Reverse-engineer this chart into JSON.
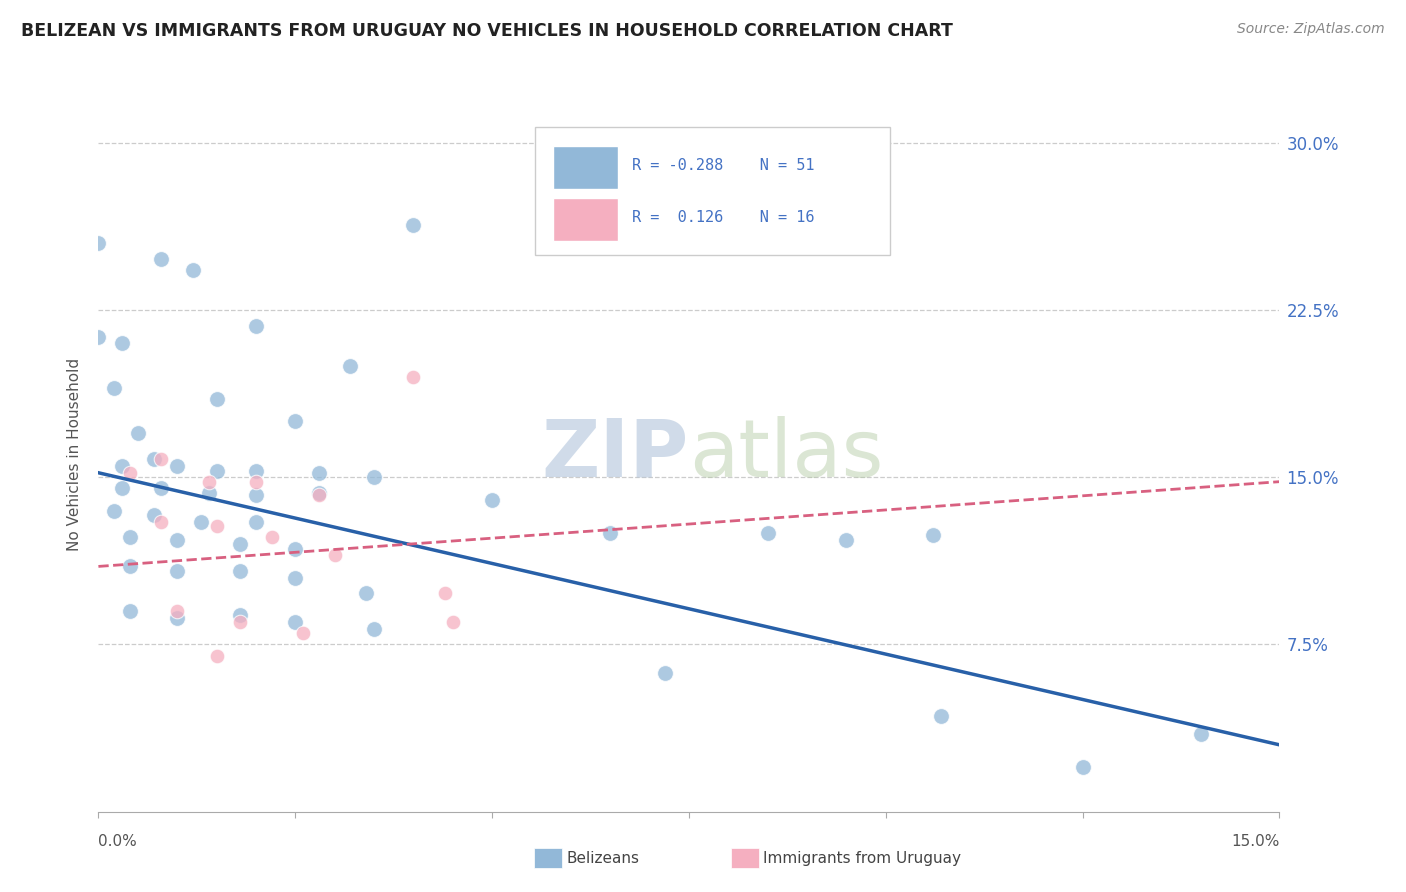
{
  "title": "BELIZEAN VS IMMIGRANTS FROM URUGUAY NO VEHICLES IN HOUSEHOLD CORRELATION CHART",
  "source": "Source: ZipAtlas.com",
  "ylabel": "No Vehicles in Household",
  "ytick_labels": [
    "7.5%",
    "15.0%",
    "22.5%",
    "30.0%"
  ],
  "ytick_values": [
    0.075,
    0.15,
    0.225,
    0.3
  ],
  "xmin": 0.0,
  "xmax": 0.15,
  "ymin": 0.0,
  "ymax": 0.32,
  "watermark_zip": "ZIP",
  "watermark_atlas": "atlas",
  "blue_color": "#92b8d8",
  "pink_color": "#f5afc0",
  "blue_line_color": "#2860a8",
  "pink_line_color": "#d86080",
  "scatter_blue": [
    [
      0.0,
      0.255
    ],
    [
      0.008,
      0.248
    ],
    [
      0.0,
      0.213
    ],
    [
      0.012,
      0.243
    ],
    [
      0.003,
      0.21
    ],
    [
      0.02,
      0.218
    ],
    [
      0.032,
      0.2
    ],
    [
      0.04,
      0.263
    ],
    [
      0.002,
      0.19
    ],
    [
      0.005,
      0.17
    ],
    [
      0.015,
      0.185
    ],
    [
      0.025,
      0.175
    ],
    [
      0.003,
      0.155
    ],
    [
      0.007,
      0.158
    ],
    [
      0.01,
      0.155
    ],
    [
      0.015,
      0.153
    ],
    [
      0.02,
      0.153
    ],
    [
      0.028,
      0.152
    ],
    [
      0.035,
      0.15
    ],
    [
      0.003,
      0.145
    ],
    [
      0.008,
      0.145
    ],
    [
      0.014,
      0.143
    ],
    [
      0.02,
      0.142
    ],
    [
      0.028,
      0.143
    ],
    [
      0.002,
      0.135
    ],
    [
      0.007,
      0.133
    ],
    [
      0.013,
      0.13
    ],
    [
      0.02,
      0.13
    ],
    [
      0.004,
      0.123
    ],
    [
      0.01,
      0.122
    ],
    [
      0.018,
      0.12
    ],
    [
      0.025,
      0.118
    ],
    [
      0.004,
      0.11
    ],
    [
      0.01,
      0.108
    ],
    [
      0.018,
      0.108
    ],
    [
      0.025,
      0.105
    ],
    [
      0.034,
      0.098
    ],
    [
      0.004,
      0.09
    ],
    [
      0.01,
      0.087
    ],
    [
      0.018,
      0.088
    ],
    [
      0.025,
      0.085
    ],
    [
      0.035,
      0.082
    ],
    [
      0.05,
      0.14
    ],
    [
      0.065,
      0.125
    ],
    [
      0.085,
      0.125
    ],
    [
      0.095,
      0.122
    ],
    [
      0.106,
      0.124
    ],
    [
      0.072,
      0.062
    ],
    [
      0.107,
      0.043
    ],
    [
      0.125,
      0.02
    ],
    [
      0.14,
      0.035
    ]
  ],
  "scatter_pink": [
    [
      0.004,
      0.152
    ],
    [
      0.008,
      0.158
    ],
    [
      0.014,
      0.148
    ],
    [
      0.02,
      0.148
    ],
    [
      0.028,
      0.142
    ],
    [
      0.008,
      0.13
    ],
    [
      0.015,
      0.128
    ],
    [
      0.022,
      0.123
    ],
    [
      0.03,
      0.115
    ],
    [
      0.04,
      0.195
    ],
    [
      0.044,
      0.098
    ],
    [
      0.01,
      0.09
    ],
    [
      0.018,
      0.085
    ],
    [
      0.026,
      0.08
    ],
    [
      0.015,
      0.07
    ],
    [
      0.045,
      0.085
    ]
  ],
  "blue_line_x": [
    0.0,
    0.15
  ],
  "blue_line_y": [
    0.152,
    0.03
  ],
  "pink_line_x": [
    0.0,
    0.15
  ],
  "pink_line_y": [
    0.11,
    0.148
  ]
}
